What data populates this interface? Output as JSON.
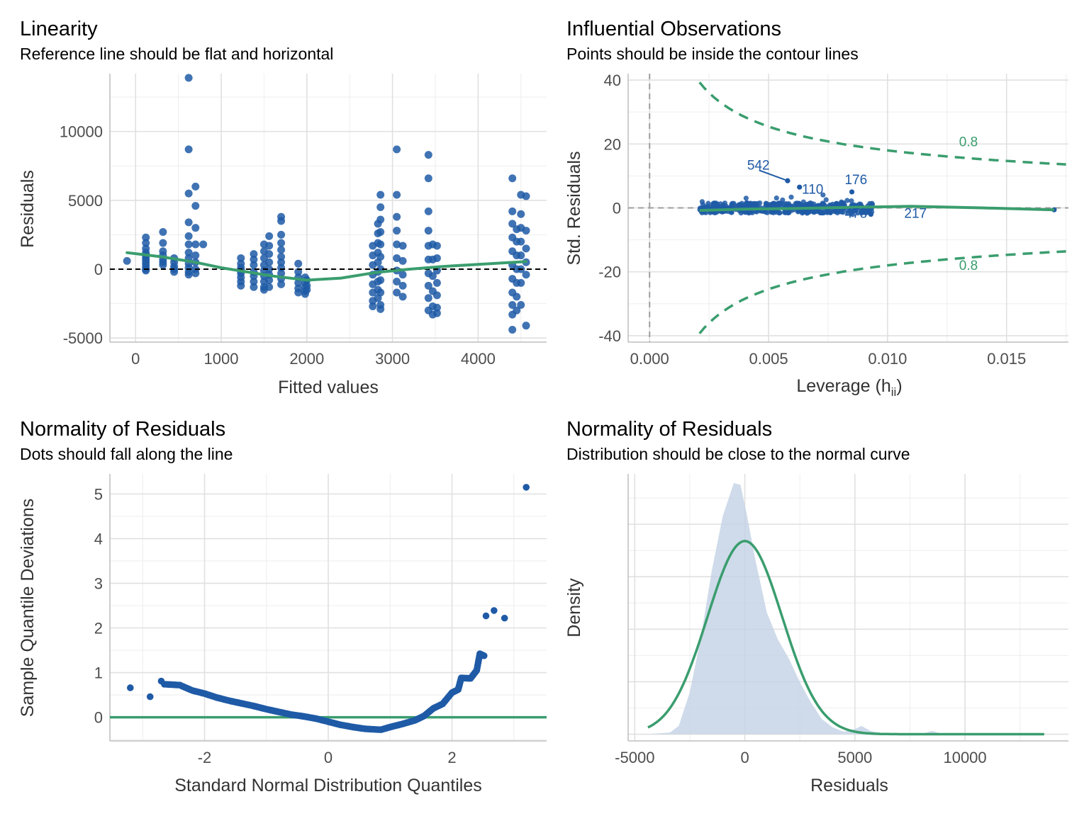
{
  "colors": {
    "point": "#1f5aa6",
    "fit": "#3a9d6e",
    "density_fill": "#c3d2e5",
    "reference": "#000000"
  },
  "chart_data": [
    {
      "type": "scatter",
      "title": "Linearity",
      "subtitle": "Reference line should be flat and horizontal",
      "xlabel": "Fitted values",
      "ylabel": "Residuals",
      "xlim": [
        -300,
        4800
      ],
      "ylim": [
        -5300,
        14200
      ],
      "xticks": [
        0,
        1000,
        2000,
        3000,
        4000
      ],
      "yticks": [
        -5000,
        0,
        5000,
        10000
      ],
      "reference_line_y": 0,
      "clusters": [
        {
          "x": -100,
          "ys": [
            600
          ]
        },
        {
          "x": 120,
          "ys": [
            2300,
            1900,
            1500,
            1200,
            1000,
            800,
            600,
            400,
            200,
            0,
            -100
          ]
        },
        {
          "x": 320,
          "ys": [
            2700,
            1900,
            1300,
            1000,
            700,
            500,
            300
          ]
        },
        {
          "x": 450,
          "ys": [
            800,
            500,
            200,
            0,
            -200
          ]
        },
        {
          "x": 620,
          "ys": [
            13900,
            8700,
            5500,
            3400,
            2400,
            1800,
            1200,
            800,
            400,
            100,
            -200,
            -400
          ]
        },
        {
          "x": 700,
          "ys": [
            6000,
            4600,
            3000,
            1800,
            1000,
            500,
            0,
            -300
          ]
        },
        {
          "x": 790,
          "ys": [
            1800
          ]
        },
        {
          "x": 1230,
          "ys": [
            800,
            400,
            100,
            -100,
            -300,
            -600,
            -900,
            -1200
          ]
        },
        {
          "x": 1380,
          "ys": [
            1100,
            700,
            300,
            -200,
            -500,
            -900,
            -1300
          ]
        },
        {
          "x": 1500,
          "ys": [
            1800,
            1300,
            800,
            300,
            -100,
            -500,
            -900,
            -1300,
            -1500
          ]
        },
        {
          "x": 1560,
          "ys": [
            2400,
            1700,
            1100,
            500,
            0,
            -400,
            -800,
            -1300
          ]
        },
        {
          "x": 1700,
          "ys": [
            3800,
            3500,
            2500,
            1900,
            1400,
            900,
            500,
            100,
            -300,
            -700,
            -1100
          ]
        },
        {
          "x": 1900,
          "ys": [
            400,
            -200,
            -600,
            -1000,
            -1400,
            -1700
          ]
        },
        {
          "x": 1980,
          "ys": [
            -600,
            -1000,
            -1300,
            -1600,
            -1800
          ]
        },
        {
          "x": 2000,
          "ys": [
            -800,
            -1200,
            -1500
          ]
        },
        {
          "x": 2770,
          "ys": [
            1700,
            1000,
            300,
            -400,
            -1100,
            -1700,
            -2300,
            -2700
          ]
        },
        {
          "x": 2830,
          "ys": [
            3300,
            2600,
            1900,
            1200,
            500,
            -200,
            -900,
            -1500,
            -2100
          ]
        },
        {
          "x": 2860,
          "ys": [
            5400,
            4500,
            3600,
            2700,
            1800,
            900,
            0,
            -800,
            -1700,
            -2600,
            -2900
          ]
        },
        {
          "x": 3050,
          "ys": [
            8700,
            5400,
            3800,
            2800,
            1800,
            800,
            -100,
            -900,
            -1700
          ]
        },
        {
          "x": 3120,
          "ys": [
            1700,
            600,
            -400,
            -1200,
            -2000
          ]
        },
        {
          "x": 3420,
          "ys": [
            8300,
            6600,
            4200,
            2800,
            1700,
            700,
            -300,
            -1200,
            -2100,
            -3000
          ]
        },
        {
          "x": 3470,
          "ys": [
            1800,
            700,
            -500,
            -1600,
            -2700,
            -3300
          ]
        },
        {
          "x": 3520,
          "ys": [
            1700,
            800,
            -100,
            -1000,
            -1900,
            -2800,
            -3200
          ]
        },
        {
          "x": 4400,
          "ys": [
            6600,
            4200,
            3300,
            2300,
            1300,
            300,
            -700,
            -1700,
            -2600,
            -3300,
            -4400
          ]
        },
        {
          "x": 4450,
          "ys": [
            2900,
            2000,
            1000,
            0,
            -1000,
            -2000,
            -3000
          ]
        },
        {
          "x": 4500,
          "ys": [
            5400,
            4000,
            3000,
            2000,
            1000,
            0,
            -1000,
            -2600
          ]
        },
        {
          "x": 4560,
          "ys": [
            5300,
            2800,
            1500,
            500,
            -400,
            -4100
          ]
        }
      ],
      "loess": [
        [
          -100,
          1200
        ],
        [
          300,
          900
        ],
        [
          700,
          500
        ],
        [
          1000,
          100
        ],
        [
          1300,
          -200
        ],
        [
          1600,
          -500
        ],
        [
          2000,
          -800
        ],
        [
          2400,
          -650
        ],
        [
          2800,
          -250
        ],
        [
          3200,
          0
        ],
        [
          3600,
          200
        ],
        [
          4000,
          350
        ],
        [
          4560,
          550
        ]
      ]
    },
    {
      "type": "scatter",
      "title": "Influential Observations",
      "subtitle": "Points should be inside the contour lines",
      "xlabel": "Leverage (h",
      "xlabel_sub": "ii",
      "xlabel_end": ")",
      "ylabel": "Std. Residuals",
      "xlim": [
        -0.0009,
        0.0176
      ],
      "ylim": [
        -42,
        42
      ],
      "xticks": [
        0.0,
        0.005,
        0.01,
        0.015
      ],
      "xtick_labels": [
        "0.000",
        "0.005",
        "0.010",
        "0.015"
      ],
      "yticks": [
        -40,
        -20,
        0,
        20,
        40
      ],
      "contour_label": "0.8",
      "contour_level": 0.8,
      "labeled_points": [
        {
          "label": "542",
          "x": 0.0058,
          "y": 8.5,
          "tx": 0.0041,
          "ty": 13.5
        },
        {
          "label": "110",
          "x": 0.0063,
          "y": 6.5,
          "tx": 0.0064,
          "ty": 6.0
        },
        {
          "label": "176",
          "x": 0.0085,
          "y": 5.0,
          "tx": 0.0082,
          "ty": 9.0
        },
        {
          "label": "478",
          "x": 0.0076,
          "y": -1.5,
          "tx": 0.0082,
          "ty": -1.5
        },
        {
          "label": "217",
          "x": 0.0093,
          "y": -2.0,
          "tx": 0.0107,
          "ty": -1.5
        }
      ],
      "isolated_point": {
        "x": 0.017,
        "y": -0.6
      },
      "fit": [
        [
          0.0021,
          -0.8
        ],
        [
          0.004,
          -0.4
        ],
        [
          0.006,
          -0.2
        ],
        [
          0.008,
          0.1
        ],
        [
          0.011,
          0.5
        ],
        [
          0.014,
          0.0
        ],
        [
          0.017,
          -0.6
        ]
      ]
    },
    {
      "type": "scatter",
      "title": "Normality of Residuals",
      "subtitle": "Dots should fall along the line",
      "xlabel": "Standard Normal Distribution Quantiles",
      "ylabel": "Sample Quantile Deviations",
      "xlim": [
        -3.53,
        3.53
      ],
      "ylim": [
        -0.53,
        5.45
      ],
      "xticks": [
        -2,
        0,
        2
      ],
      "yticks": [
        0,
        1,
        2,
        3,
        4,
        5
      ],
      "reference_line_y": 0,
      "extreme_points": [
        [
          -3.2,
          0.66
        ],
        [
          -2.88,
          0.46
        ],
        [
          -2.7,
          0.81
        ],
        [
          2.55,
          2.27
        ],
        [
          2.68,
          2.39
        ],
        [
          2.85,
          2.22
        ],
        [
          3.2,
          5.15
        ]
      ],
      "curve": [
        [
          -2.65,
          0.74
        ],
        [
          -2.4,
          0.72
        ],
        [
          -2.2,
          0.6
        ],
        [
          -2.0,
          0.53
        ],
        [
          -1.8,
          0.44
        ],
        [
          -1.6,
          0.37
        ],
        [
          -1.4,
          0.31
        ],
        [
          -1.2,
          0.25
        ],
        [
          -1.0,
          0.18
        ],
        [
          -0.8,
          0.12
        ],
        [
          -0.6,
          0.06
        ],
        [
          -0.4,
          0.02
        ],
        [
          -0.2,
          -0.03
        ],
        [
          0.0,
          -0.1
        ],
        [
          0.2,
          -0.17
        ],
        [
          0.4,
          -0.22
        ],
        [
          0.6,
          -0.26
        ],
        [
          0.85,
          -0.28
        ],
        [
          1.0,
          -0.22
        ],
        [
          1.2,
          -0.15
        ],
        [
          1.4,
          -0.07
        ],
        [
          1.55,
          0.03
        ],
        [
          1.7,
          0.2
        ],
        [
          1.85,
          0.3
        ],
        [
          2.0,
          0.55
        ],
        [
          2.1,
          0.62
        ],
        [
          2.15,
          0.88
        ],
        [
          2.3,
          0.87
        ],
        [
          2.4,
          1.05
        ],
        [
          2.45,
          1.42
        ],
        [
          2.53,
          1.37
        ]
      ]
    },
    {
      "type": "area",
      "title": "Normality of Residuals",
      "subtitle": "Distribution should be close to the normal curve",
      "xlabel": "Residuals",
      "ylabel": "Density",
      "xlim": [
        -5300,
        14700
      ],
      "ylim": [
        -8e-06,
        0.00031
      ],
      "xticks": [
        -5000,
        0,
        5000,
        10000
      ],
      "density": [
        [
          -4400,
          0.0
        ],
        [
          -3400,
          2e-06
        ],
        [
          -3000,
          1e-05
        ],
        [
          -2500,
          5e-05
        ],
        [
          -2000,
          0.000115
        ],
        [
          -1500,
          0.000195
        ],
        [
          -1000,
          0.00026
        ],
        [
          -500,
          0.000299
        ],
        [
          -200,
          0.000297
        ],
        [
          100,
          0.00026
        ],
        [
          500,
          0.000205
        ],
        [
          1000,
          0.000145
        ],
        [
          1500,
          0.000113
        ],
        [
          2000,
          9e-05
        ],
        [
          2500,
          6.2e-05
        ],
        [
          3000,
          3.8e-05
        ],
        [
          3500,
          1.8e-05
        ],
        [
          4000,
          8e-06
        ],
        [
          4500,
          3e-06
        ],
        [
          5000,
          6e-06
        ],
        [
          5300,
          1e-05
        ],
        [
          5700,
          4e-06
        ],
        [
          6500,
          0.0
        ],
        [
          8000,
          0.0
        ],
        [
          8500,
          4e-06
        ],
        [
          9000,
          0.0
        ],
        [
          13600,
          0.0
        ]
      ],
      "normal_curve": {
        "mean": 0,
        "sd": 1700,
        "from": -4400,
        "to": 13600,
        "peak": 0.00023
      }
    }
  ]
}
